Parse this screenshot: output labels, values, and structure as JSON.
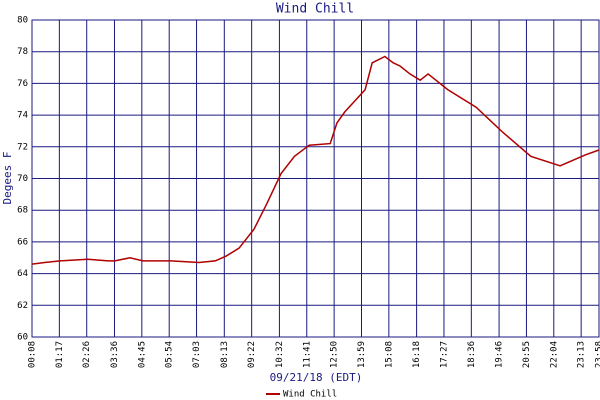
{
  "chart_data": {
    "type": "line",
    "title": "Wind Chill",
    "x_label": "09/21/18 (EDT)",
    "y_label": "Degees F",
    "xlim": [
      8,
      1438
    ],
    "ylim": [
      60,
      80
    ],
    "xticks": [
      {
        "value": 8,
        "label": "00:08"
      },
      {
        "value": 77,
        "label": "01:17"
      },
      {
        "value": 146,
        "label": "02:26"
      },
      {
        "value": 216,
        "label": "03:36"
      },
      {
        "value": 285,
        "label": "04:45"
      },
      {
        "value": 354,
        "label": "05:54"
      },
      {
        "value": 423,
        "label": "07:03"
      },
      {
        "value": 493,
        "label": "08:13"
      },
      {
        "value": 562,
        "label": "09:22"
      },
      {
        "value": 632,
        "label": "10:32"
      },
      {
        "value": 701,
        "label": "11:41"
      },
      {
        "value": 770,
        "label": "12:50"
      },
      {
        "value": 839,
        "label": "13:59"
      },
      {
        "value": 908,
        "label": "15:08"
      },
      {
        "value": 978,
        "label": "16:18"
      },
      {
        "value": 1047,
        "label": "17:27"
      },
      {
        "value": 1116,
        "label": "18:36"
      },
      {
        "value": 1186,
        "label": "19:46"
      },
      {
        "value": 1255,
        "label": "20:55"
      },
      {
        "value": 1324,
        "label": "22:04"
      },
      {
        "value": 1393,
        "label": "23:13"
      },
      {
        "value": 1438,
        "label": "23:58"
      }
    ],
    "yticks": [
      60,
      62,
      64,
      66,
      68,
      70,
      72,
      74,
      76,
      78,
      80
    ],
    "grid": true,
    "legend": "bottom",
    "x": [
      8,
      40,
      79,
      149,
      200,
      217,
      255,
      288,
      359,
      429,
      470,
      497,
      530,
      568,
      600,
      636,
      670,
      707,
      760,
      777,
      797,
      848,
      866,
      898,
      919,
      936,
      961,
      987,
      1007,
      1057,
      1128,
      1196,
      1266,
      1340,
      1405,
      1438
    ],
    "series": [
      {
        "name": "Wind Chill",
        "color": "#b00000",
        "values": [
          64.6,
          64.7,
          64.8,
          64.9,
          64.8,
          64.8,
          65.0,
          64.8,
          64.8,
          64.7,
          64.8,
          65.1,
          65.6,
          66.8,
          68.4,
          70.3,
          71.4,
          72.1,
          72.2,
          73.5,
          74.2,
          75.6,
          77.3,
          77.7,
          77.3,
          77.1,
          76.6,
          76.2,
          76.6,
          75.6,
          74.5,
          72.9,
          71.4,
          70.8,
          71.5,
          71.8
        ]
      }
    ]
  }
}
